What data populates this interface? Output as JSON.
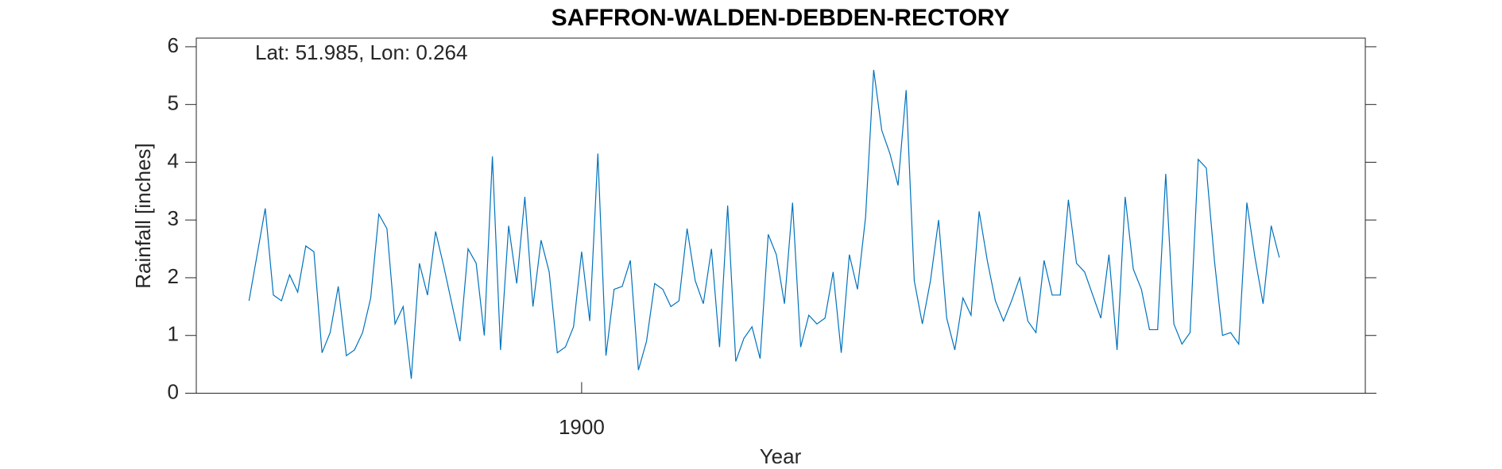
{
  "chart_data": {
    "type": "line",
    "title": "SAFFRON-WALDEN-DEBDEN-RECTORY",
    "annotation": "Lat: 51.985, Lon: 0.264",
    "xlabel": "Year",
    "ylabel": "Rainfall [inches]",
    "x": [
      1859,
      1860,
      1861,
      1862,
      1863,
      1864,
      1865,
      1866,
      1867,
      1868,
      1869,
      1870,
      1871,
      1872,
      1873,
      1874,
      1875,
      1876,
      1877,
      1878,
      1879,
      1880,
      1881,
      1882,
      1883,
      1884,
      1885,
      1886,
      1887,
      1888,
      1889,
      1890,
      1891,
      1892,
      1893,
      1894,
      1895,
      1896,
      1897,
      1898,
      1899,
      1900,
      1901,
      1902,
      1903,
      1904,
      1905,
      1906,
      1907,
      1908,
      1909,
      1910,
      1911,
      1912,
      1913,
      1914,
      1915,
      1916,
      1917,
      1918,
      1919,
      1920,
      1921,
      1922,
      1923,
      1924,
      1925,
      1926,
      1927,
      1928,
      1929,
      1930,
      1931,
      1932,
      1933,
      1934,
      1935,
      1936,
      1937,
      1938,
      1939,
      1940,
      1941,
      1942,
      1943,
      1944,
      1945,
      1946,
      1947,
      1948,
      1949,
      1950,
      1951,
      1952,
      1953,
      1954,
      1955,
      1956,
      1957,
      1958,
      1959,
      1960,
      1961,
      1962,
      1963,
      1964,
      1965,
      1966,
      1967,
      1968,
      1969,
      1970,
      1971,
      1972,
      1973,
      1974,
      1975,
      1976,
      1977,
      1978,
      1979,
      1980,
      1981,
      1982,
      1983,
      1984,
      1985,
      1986
    ],
    "series": [
      {
        "name": "Rainfall",
        "color": "#0072bd",
        "values": [
          1.6,
          2.4,
          3.2,
          1.7,
          1.6,
          2.05,
          1.75,
          2.55,
          2.45,
          0.7,
          1.05,
          1.85,
          0.65,
          0.75,
          1.05,
          1.65,
          3.1,
          2.85,
          1.2,
          1.5,
          0.25,
          2.25,
          1.7,
          2.8,
          2.2,
          1.55,
          0.9,
          2.5,
          2.25,
          1.0,
          4.1,
          0.75,
          2.9,
          1.9,
          3.4,
          1.5,
          2.65,
          2.1,
          0.7,
          0.8,
          1.15,
          2.45,
          1.25,
          4.15,
          0.65,
          1.8,
          1.85,
          2.3,
          0.4,
          0.9,
          1.9,
          1.8,
          1.5,
          1.6,
          2.85,
          1.95,
          1.55,
          2.5,
          0.8,
          3.25,
          0.55,
          0.95,
          1.15,
          0.6,
          2.75,
          2.4,
          1.55,
          3.3,
          0.8,
          1.35,
          1.2,
          1.3,
          2.1,
          0.7,
          2.4,
          1.8,
          3.05,
          5.6,
          4.55,
          4.15,
          3.6,
          5.25,
          1.95,
          1.2,
          1.95,
          3.0,
          1.3,
          0.75,
          1.65,
          1.35,
          3.15,
          2.3,
          1.6,
          1.25,
          1.6,
          2.0,
          1.25,
          1.05,
          2.3,
          1.7,
          1.7,
          3.35,
          2.25,
          2.1,
          1.7,
          1.3,
          2.4,
          0.75,
          3.4,
          2.15,
          1.8,
          1.1,
          1.1,
          3.8,
          1.2,
          0.85,
          1.05,
          4.05,
          3.9,
          2.3,
          1.0,
          1.05,
          0.85,
          3.3,
          2.35,
          1.55,
          2.9,
          2.35
        ]
      }
    ],
    "xlim": [
      1852.5,
      1996.6
    ],
    "xticks": [
      1900
    ],
    "ylim": [
      0,
      6.15
    ],
    "yticks": [
      0,
      1,
      2,
      3,
      4,
      5,
      6
    ]
  }
}
